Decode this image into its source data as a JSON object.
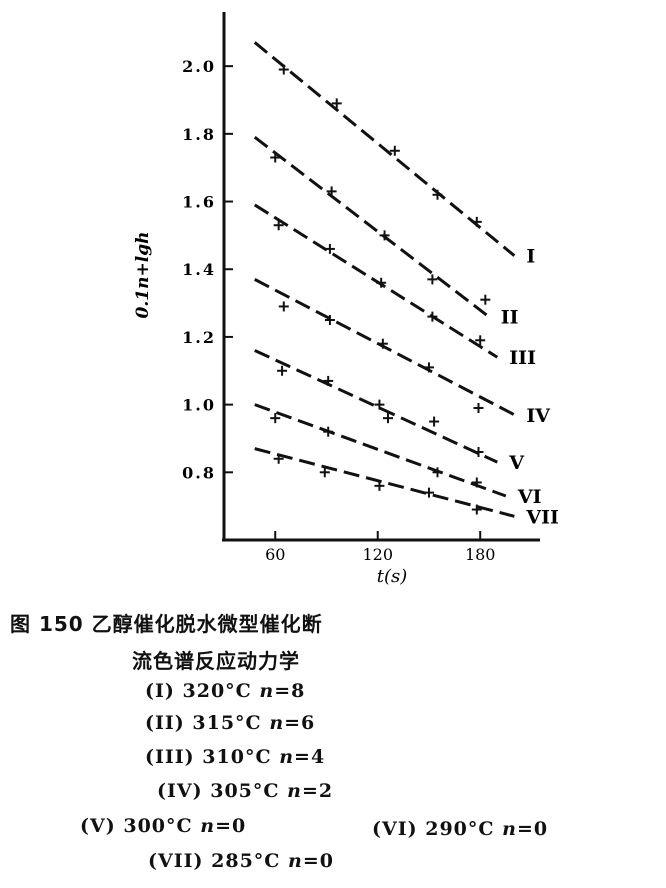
{
  "chart_data": {
    "type": "line",
    "ylabel": "0.1n+lgh",
    "xlabel": "t(s)",
    "xlim": [
      30,
      215
    ],
    "ylim": [
      0.6,
      2.16
    ],
    "xticks": [
      "60",
      "120",
      "180"
    ],
    "yticks": [
      "2.0",
      "1.8",
      "1.6",
      "1.4",
      "1.2",
      "1.0",
      "0.8"
    ],
    "grid": false,
    "series": [
      {
        "name": "I",
        "line": [
          [
            48,
            2.07
          ],
          [
            200,
            1.44
          ]
        ],
        "points": [
          [
            65,
            1.99
          ],
          [
            96,
            1.89
          ],
          [
            130,
            1.75
          ],
          [
            155,
            1.62
          ],
          [
            178,
            1.54
          ]
        ]
      },
      {
        "name": "II",
        "line": [
          [
            48,
            1.79
          ],
          [
            185,
            1.26
          ]
        ],
        "points": [
          [
            60,
            1.73
          ],
          [
            93,
            1.63
          ],
          [
            124,
            1.5
          ],
          [
            152,
            1.37
          ],
          [
            183,
            1.31
          ]
        ]
      },
      {
        "name": "III",
        "line": [
          [
            48,
            1.59
          ],
          [
            190,
            1.14
          ]
        ],
        "points": [
          [
            62,
            1.53
          ],
          [
            92,
            1.46
          ],
          [
            122,
            1.36
          ],
          [
            152,
            1.26
          ],
          [
            180,
            1.19
          ]
        ]
      },
      {
        "name": "IV",
        "line": [
          [
            48,
            1.37
          ],
          [
            200,
            0.97
          ]
        ],
        "points": [
          [
            65,
            1.29
          ],
          [
            92,
            1.25
          ],
          [
            123,
            1.18
          ],
          [
            150,
            1.11
          ],
          [
            179,
            0.99
          ]
        ]
      },
      {
        "name": "V",
        "line": [
          [
            48,
            1.16
          ],
          [
            190,
            0.83
          ]
        ],
        "points": [
          [
            64,
            1.1
          ],
          [
            91,
            1.07
          ],
          [
            121,
            1.0
          ],
          [
            153,
            0.95
          ],
          [
            179,
            0.86
          ]
        ]
      },
      {
        "name": "VI",
        "line": [
          [
            48,
            1.0
          ],
          [
            195,
            0.73
          ]
        ],
        "points": [
          [
            60,
            0.96
          ],
          [
            91,
            0.92
          ],
          [
            126,
            0.96
          ],
          [
            155,
            0.8
          ],
          [
            178,
            0.77
          ]
        ]
      },
      {
        "name": "VII",
        "line": [
          [
            48,
            0.87
          ],
          [
            200,
            0.67
          ]
        ],
        "points": [
          [
            62,
            0.84
          ],
          [
            89,
            0.8
          ],
          [
            121,
            0.76
          ],
          [
            150,
            0.74
          ],
          [
            178,
            0.69
          ]
        ]
      }
    ]
  },
  "caption": {
    "line1": "图 150   乙醇催化脱水微型催化断",
    "line2": "流色谱反应动力学"
  },
  "legend": [
    {
      "label": "(I)",
      "temp": "320°C",
      "n": "n",
      "eq": "=8"
    },
    {
      "label": "(II)",
      "temp": "315°C",
      "n": "n",
      "eq": "=6"
    },
    {
      "label": "(III)",
      "temp": "310°C",
      "n": "n",
      "eq": "=4"
    },
    {
      "label": "(IV)",
      "temp": "305°C",
      "n": "n",
      "eq": "=2"
    },
    {
      "label": "(V)",
      "temp": "300°C",
      "n": "n",
      "eq": "=0"
    },
    {
      "label": "(VI)",
      "temp": "290°C",
      "n": "n",
      "eq": "=0"
    },
    {
      "label": "(VII)",
      "temp": "285°C",
      "n": "n",
      "eq": "=0"
    }
  ],
  "colors": {
    "ink": "#111111",
    "paper": "#ffffff"
  }
}
